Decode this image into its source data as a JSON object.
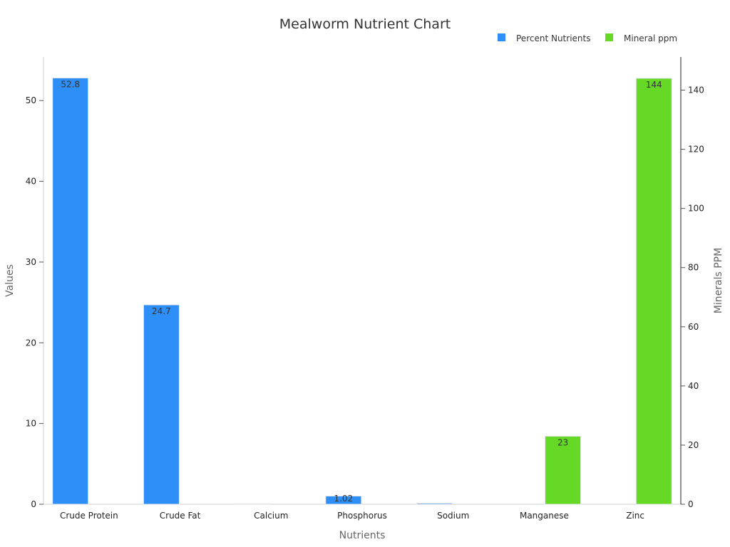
{
  "colors": {
    "percent": "#2d8ff7",
    "mineral": "#66d926"
  },
  "chart_data": {
    "type": "bar",
    "title": "Mealworm Nutrient Chart",
    "xlabel": "Nutrients",
    "ylabel": "Values",
    "y2label": "Minerals PPM",
    "categories": [
      "Crude Protein",
      "Crude Fat",
      "Calcium",
      "Phosphorus",
      "Sodium",
      "Manganese",
      "Zinc"
    ],
    "series": [
      {
        "name": "Percent Nutrients",
        "axis": "left",
        "values": [
          52.8,
          24.7,
          0.05,
          1.02,
          0.13,
          null,
          null
        ],
        "labels": [
          "52.8",
          "24.7",
          "",
          "1.02",
          "",
          "",
          ""
        ]
      },
      {
        "name": "Mineral ppm",
        "axis": "right",
        "values": [
          null,
          null,
          null,
          null,
          null,
          23,
          144
        ],
        "labels": [
          "",
          "",
          "",
          "",
          "",
          "23",
          "144"
        ]
      }
    ],
    "ylim": [
      0,
      55.4
    ],
    "y2lim": [
      0,
      151.2
    ],
    "yticks": [
      0,
      10,
      20,
      30,
      40,
      50
    ],
    "y2ticks": [
      0,
      20,
      40,
      60,
      80,
      100,
      120,
      140
    ],
    "legend": "top-right",
    "grid": false
  }
}
